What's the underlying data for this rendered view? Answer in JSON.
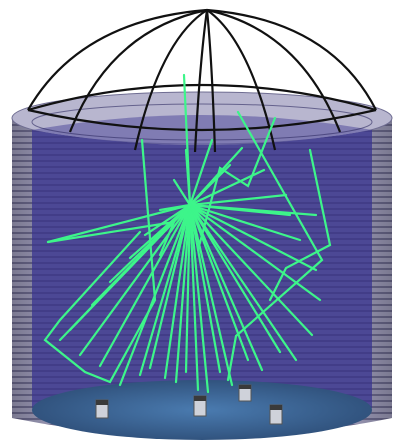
{
  "scene": {
    "colors": {
      "background": "#ffffff",
      "tank_wall_outer": "#9a98b8",
      "tank_wall_stripe": "#6f6d92",
      "interior": "#4b4793",
      "interior_deep": "#3f3a86",
      "floor": "#3d6a9c",
      "floor_dark": "#2e4f78",
      "dome_frame": "#111111",
      "ray": "#3df58a",
      "detector_body": "#cfd2da",
      "detector_cap": "#3a3a3a"
    },
    "icons": {
      "dome": "geodesic-dome-frame",
      "tank": "cylindrical-water-tank",
      "rays": "light-ray-bundle",
      "detector": "photomultiplier-tube"
    }
  }
}
